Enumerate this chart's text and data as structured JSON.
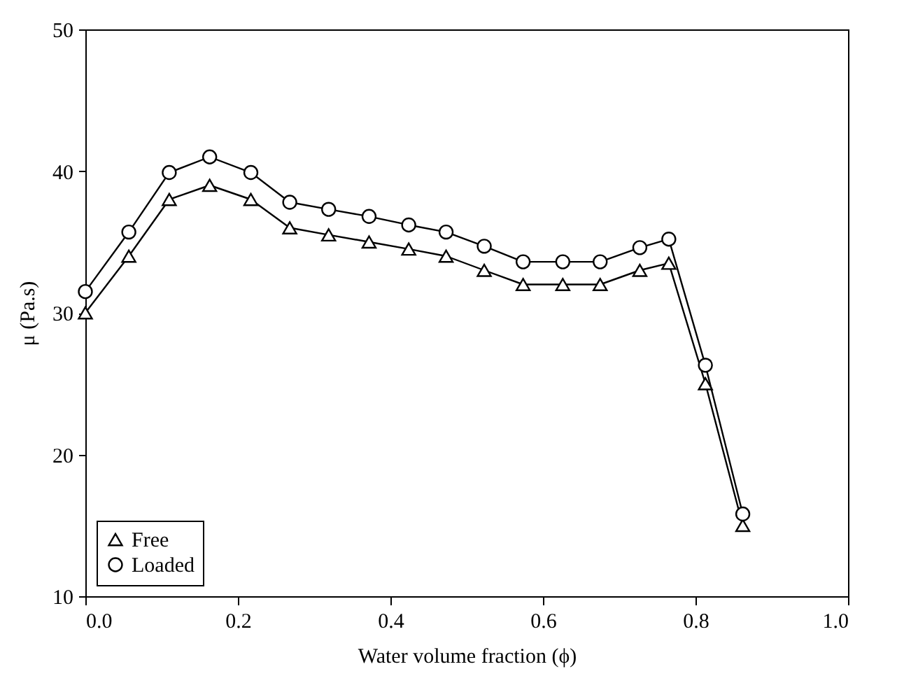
{
  "chart_data": {
    "type": "line",
    "xlabel": "Water volume fraction (ϕ)",
    "ylabel": "μ (Pa.s)",
    "xlim": [
      0,
      1
    ],
    "xticks": [
      {
        "value": 0,
        "label": "0.0"
      },
      {
        "value": 0.2,
        "label": "0.2"
      },
      {
        "value": 0.4,
        "label": "0.4"
      },
      {
        "value": 0.6,
        "label": "0.6"
      },
      {
        "value": 0.8,
        "label": "0.8"
      },
      {
        "value": 1,
        "label": "1.0"
      }
    ],
    "ylim": [
      10,
      50
    ],
    "yticks": [
      10,
      20,
      30,
      40,
      50
    ],
    "grid": false,
    "legend": "bottom left",
    "line_style": "solid",
    "x": [
      0,
      0.057,
      0.11,
      0.163,
      0.217,
      0.268,
      0.319,
      0.372,
      0.424,
      0.473,
      0.523,
      0.574,
      0.626,
      0.675,
      0.727,
      0.765,
      0.813,
      0.862
    ],
    "series": [
      {
        "name": "Free",
        "color": "#000000",
        "marker": "triangle",
        "values": [
          30,
          34,
          38,
          39,
          38,
          36,
          35.5,
          35,
          34.5,
          34,
          33,
          32,
          32,
          32,
          33,
          33.5,
          25,
          15
        ]
      },
      {
        "name": "Loaded",
        "color": "#000000",
        "marker": "circle",
        "values": [
          31.5,
          35.7,
          39.9,
          41,
          39.9,
          37.8,
          37.3,
          36.8,
          36.2,
          35.7,
          34.7,
          33.6,
          33.6,
          33.6,
          34.6,
          35.2,
          26.3,
          15.8
        ]
      }
    ]
  }
}
